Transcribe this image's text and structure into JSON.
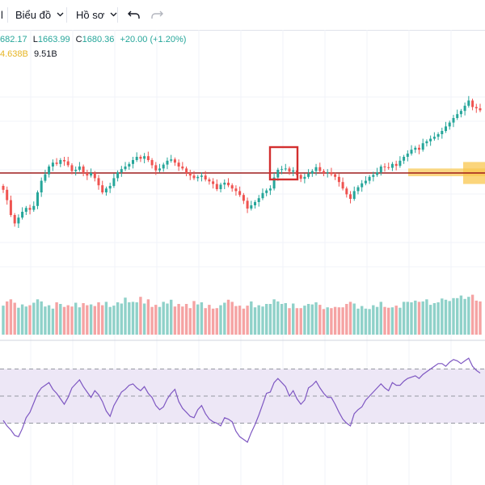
{
  "toolbar": {
    "edge_label": "l",
    "chart_menu": "Biểu đồ",
    "profile_menu": "Hồ sơ"
  },
  "legend": {
    "high_fragment": "682.17",
    "low_label": "L",
    "low_value": "1663.99",
    "close_label": "C",
    "close_value": "1680.36",
    "change": "+20.00 (+1.20%)",
    "volume_ma_fragment": "4.638B",
    "volume_value": "9.51B"
  },
  "colors": {
    "up": "#26a69a",
    "down": "#ef5350",
    "up_volume": "#8fd1c9",
    "down_volume": "#f5a3a3",
    "resistance_line": "#9e1b1b",
    "highlight_box": "#d32f2f",
    "zone": "#f9c74f",
    "rsi_line": "#7e57c2",
    "rsi_band": "#ede7f6"
  },
  "chart_data": {
    "type": "candlestick",
    "price_close": [
      1604,
      1588,
      1565,
      1552,
      1561,
      1570,
      1576,
      1573,
      1579,
      1600,
      1618,
      1628,
      1640,
      1646,
      1644,
      1650,
      1648,
      1642,
      1633,
      1635,
      1640,
      1630,
      1626,
      1630,
      1622,
      1611,
      1600,
      1606,
      1610,
      1622,
      1631,
      1636,
      1640,
      1644,
      1650,
      1655,
      1652,
      1656,
      1650,
      1642,
      1634,
      1637,
      1643,
      1649,
      1651,
      1646,
      1640,
      1637,
      1630,
      1626,
      1622,
      1624,
      1626,
      1620,
      1617,
      1613,
      1605,
      1612,
      1615,
      1611,
      1606,
      1602,
      1596,
      1587,
      1575,
      1580,
      1585,
      1591,
      1599,
      1603,
      1606,
      1623,
      1635,
      1636,
      1637,
      1632,
      1634,
      1627,
      1621,
      1624,
      1629,
      1633,
      1639,
      1633,
      1630,
      1631,
      1628,
      1624,
      1616,
      1606,
      1597,
      1590,
      1602,
      1608,
      1614,
      1618,
      1624,
      1627,
      1631,
      1640,
      1639,
      1638,
      1644,
      1641,
      1649,
      1655,
      1660,
      1666,
      1669,
      1666,
      1676,
      1679,
      1683,
      1686,
      1690,
      1695,
      1702,
      1708,
      1715,
      1721,
      1726,
      1734,
      1742,
      1732,
      1730,
      1727
    ],
    "resistance_level": 1630,
    "zone_low": 1613,
    "zone_high": 1647,
    "volume": [
      6.9,
      7.9,
      8.4,
      7.6,
      6.4,
      7.2,
      6.7,
      7.0,
      7.6,
      8.4,
      7.9,
      6.7,
      7.0,
      6.2,
      7.7,
      7.3,
      6.6,
      7.0,
      6.7,
      7.6,
      6.5,
      7.5,
      7.0,
      7.2,
      6.8,
      7.7,
      7.0,
      7.8,
      6.6,
      6.9,
      7.7,
      7.4,
      8.8,
      7.7,
      7.8,
      7.7,
      9.0,
      7.4,
      8.4,
      6.6,
      7.1,
      6.6,
      7.8,
      7.4,
      8.3,
      6.7,
      7.3,
      6.7,
      7.3,
      6.3,
      8.0,
      7.2,
      7.7,
      6.3,
      7.1,
      6.2,
      6.3,
      7.0,
      7.6,
      8.3,
      7.8,
      6.8,
      6.9,
      6.2,
      6.9,
      7.9,
      6.5,
      7.0,
      6.7,
      7.3,
      7.3,
      8.4,
      7.9,
      7.3,
      7.5,
      6.3,
      7.4,
      6.3,
      6.3,
      6.9,
      7.3,
      7.2,
      7.7,
      7.1,
      6.1,
      6.5,
      6.3,
      6.6,
      6.5,
      6.5,
      7.3,
      7.8,
      7.4,
      6.2,
      6.8,
      6.2,
      6.1,
      7.0,
      6.6,
      7.8,
      6.6,
      6.4,
      6.5,
      6.9,
      6.4,
      7.8,
      7.8,
      7.7,
      8.1,
      7.8,
      7.9,
      8.4,
      7.1,
      7.5,
      7.7,
      8.6,
      8.3,
      8.0,
      8.7,
      8.7,
      9.3,
      8.5,
      9.0,
      9.5,
      8.1,
      7.9
    ],
    "rsi": [
      32,
      28,
      25,
      21,
      20,
      26,
      34,
      38,
      45,
      52,
      56,
      58,
      60,
      55,
      52,
      48,
      44,
      49,
      56,
      59,
      62,
      57,
      53,
      49,
      54,
      51,
      46,
      39,
      35,
      43,
      48,
      53,
      55,
      58,
      59,
      56,
      54,
      57,
      52,
      49,
      43,
      40,
      42,
      48,
      52,
      55,
      46,
      41,
      38,
      35,
      34,
      40,
      43,
      37,
      33,
      31,
      30,
      28,
      34,
      33,
      31,
      24,
      20,
      18,
      16,
      23,
      29,
      36,
      44,
      52,
      53,
      60,
      63,
      60,
      57,
      50,
      54,
      48,
      44,
      47,
      56,
      58,
      61,
      56,
      52,
      49,
      49,
      44,
      38,
      33,
      30,
      28,
      37,
      40,
      42,
      47,
      50,
      53,
      56,
      59,
      56,
      54,
      60,
      58,
      58,
      61,
      63,
      64,
      65,
      63,
      66,
      68,
      70,
      72,
      74,
      74,
      72,
      75,
      77,
      76,
      74,
      76,
      78,
      72,
      69,
      67
    ],
    "rsi_levels": [
      70,
      50,
      30
    ]
  }
}
